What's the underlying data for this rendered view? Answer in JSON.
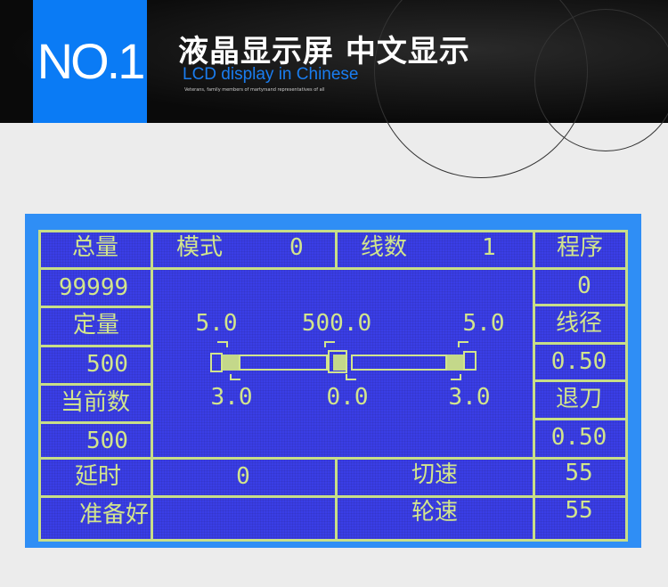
{
  "header": {
    "badge": "NO.1",
    "title": "液晶显示屏  中文显示",
    "subtitle": "LCD display in Chinese",
    "tagline": "Veterans, family members of martyrsand representatives of all"
  },
  "lcd": {
    "total_label": "总量",
    "total_value": "99999",
    "mode_label": "模式",
    "mode_value": "0",
    "lines_label": "线数",
    "lines_value": "1",
    "program_label": "程序",
    "program_value": "0",
    "set_label": "定量",
    "set_value": "500",
    "wire_diameter_label": "线径",
    "wire_diameter_value": "0.50",
    "current_label": "当前数",
    "current_value": "500",
    "retract_label": "退刀",
    "retract_value": "0.50",
    "delay_label": "延时",
    "delay_value": "0",
    "cut_speed_label": "切速",
    "cut_speed_value": "55",
    "status": "准备好",
    "wheel_speed_label": "轮速",
    "wheel_speed_value": "55",
    "diagram": {
      "top_left": "5.0",
      "top_mid": "500.0",
      "top_right": "5.0",
      "bottom_left": "3.0",
      "bottom_mid": "0.0",
      "bottom_right": "3.0"
    }
  },
  "colors": {
    "accent": "#0a7bf5",
    "lcd_bg": "#3a3ee6",
    "lcd_fg": "#d2e58c"
  }
}
